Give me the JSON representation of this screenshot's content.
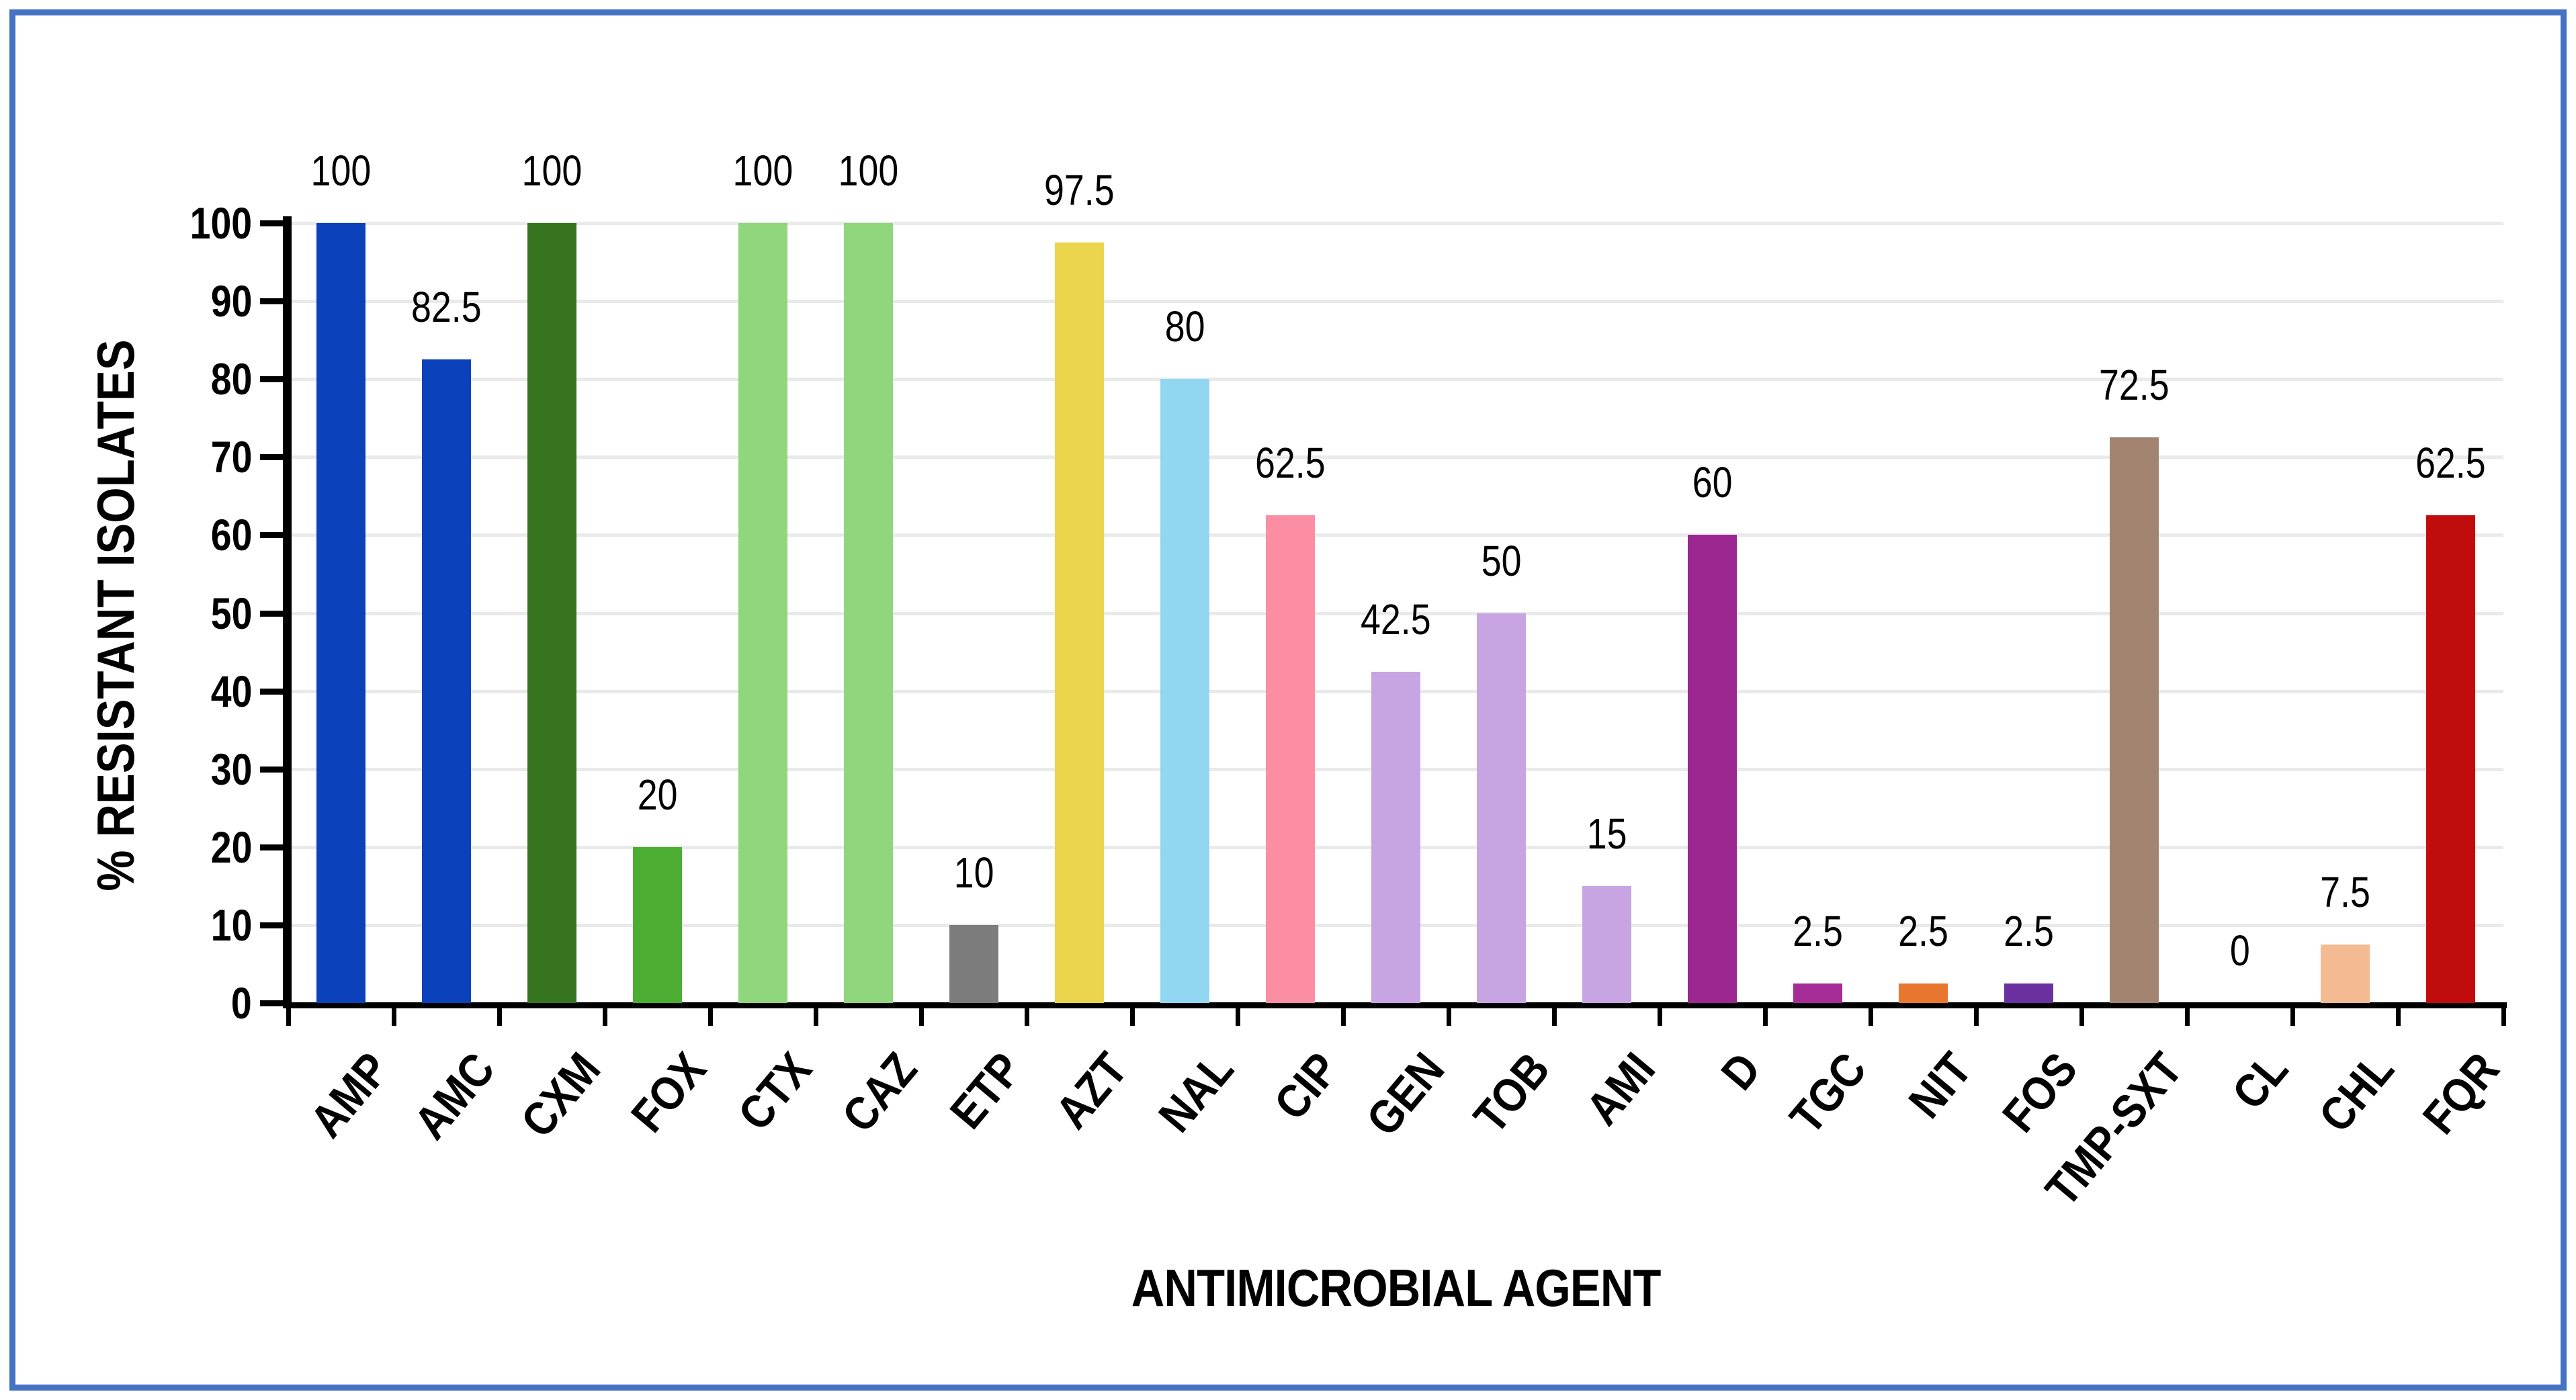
{
  "page": {
    "background_color": "#FFFFFF",
    "border_color": "#4472C4"
  },
  "chart_data": {
    "type": "bar",
    "title": "",
    "xlabel": "ANTIMICROBIAL AGENT",
    "ylabel": "% RESISTANT ISOLATES",
    "ylim": [
      0,
      100
    ],
    "ytick_step": 10,
    "yticks": [
      0,
      10,
      20,
      30,
      40,
      50,
      60,
      70,
      80,
      90,
      100
    ],
    "grid": "horizontal",
    "gridline_color": "#EAEAEA",
    "axis_color": "#000000",
    "legend": "none",
    "categories": [
      "AMP",
      "AMC",
      "CXM",
      "FOX",
      "CTX",
      "CAZ",
      "ETP",
      "AZT",
      "NAL",
      "CIP",
      "GEN",
      "TOB",
      "AMI",
      "D",
      "TGC",
      "NIT",
      "FOS",
      "TMP-SXT",
      "CL",
      "CHL",
      "FQR"
    ],
    "values": [
      100,
      82.5,
      100,
      20,
      100,
      100,
      10,
      97.5,
      80,
      62.5,
      42.5,
      50,
      15,
      60,
      2.5,
      2.5,
      2.5,
      72.5,
      0,
      7.5,
      62.5
    ],
    "data_labels": [
      "100",
      "82.5",
      "100",
      "20",
      "100",
      "100",
      "10",
      "97.5",
      "80",
      "62.5",
      "42.5",
      "50",
      "15",
      "60",
      "2.5",
      "2.5",
      "2.5",
      "72.5",
      "0",
      "7.5",
      "62.5"
    ],
    "bar_colors": [
      "#0B42BB",
      "#0B42BB",
      "#367420",
      "#4BAD32",
      "#8FD67C",
      "#8FD67C",
      "#7C7C7C",
      "#EAD54C",
      "#92D7F2",
      "#FB8EA3",
      "#C9A4E2",
      "#C9A4E2",
      "#C9A4E2",
      "#9C2790",
      "#A62C97",
      "#E8762F",
      "#6A30A0",
      "#A28471",
      "#A28471",
      "#F4BB92",
      "#C00C0C"
    ]
  }
}
